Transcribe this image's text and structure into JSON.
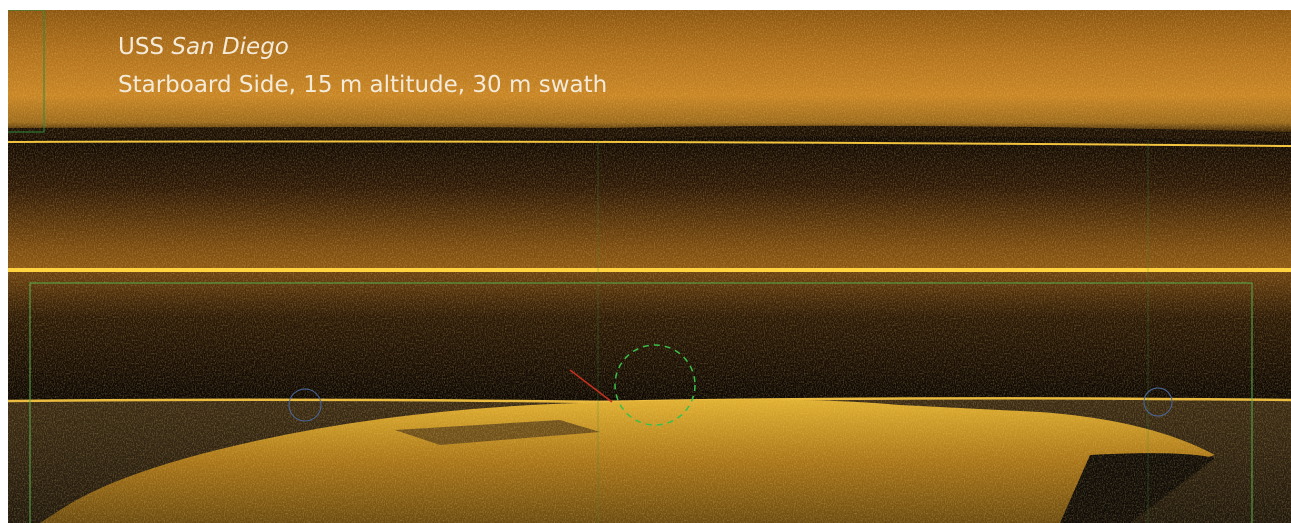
{
  "caption": {
    "title_prefix": "USS",
    "title_ship": "San Diego",
    "subtitle": "Starboard Side, 15 m altitude, 30 m swath"
  }
}
